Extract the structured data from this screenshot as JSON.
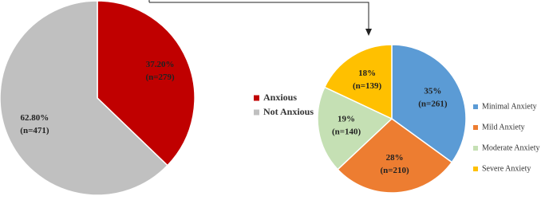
{
  "chart_data": [
    {
      "type": "pie",
      "categories": [
        "Anxious",
        "Not Anxious"
      ],
      "values": [
        37.2,
        62.8
      ],
      "value_labels": [
        "37.20%",
        "62.80%"
      ],
      "count_labels": [
        "(n=279)",
        "(n=471)"
      ],
      "colors": [
        "#c00000",
        "#c0c0c0"
      ],
      "legend": "right"
    },
    {
      "type": "pie",
      "categories": [
        "Minimal Anxiety",
        "Mild Anxiety",
        "Moderate Anxiety",
        "Severe Anxiety"
      ],
      "values": [
        35,
        28,
        19,
        18
      ],
      "value_labels": [
        "35%",
        "28%",
        "19%",
        "18%"
      ],
      "count_labels": [
        "(n=261)",
        "(n=210)",
        "(n=140)",
        "(n=139)"
      ],
      "colors": [
        "#5b9bd5",
        "#ed7d31",
        "#c5e0b4",
        "#ffc000"
      ],
      "legend": "right"
    }
  ]
}
